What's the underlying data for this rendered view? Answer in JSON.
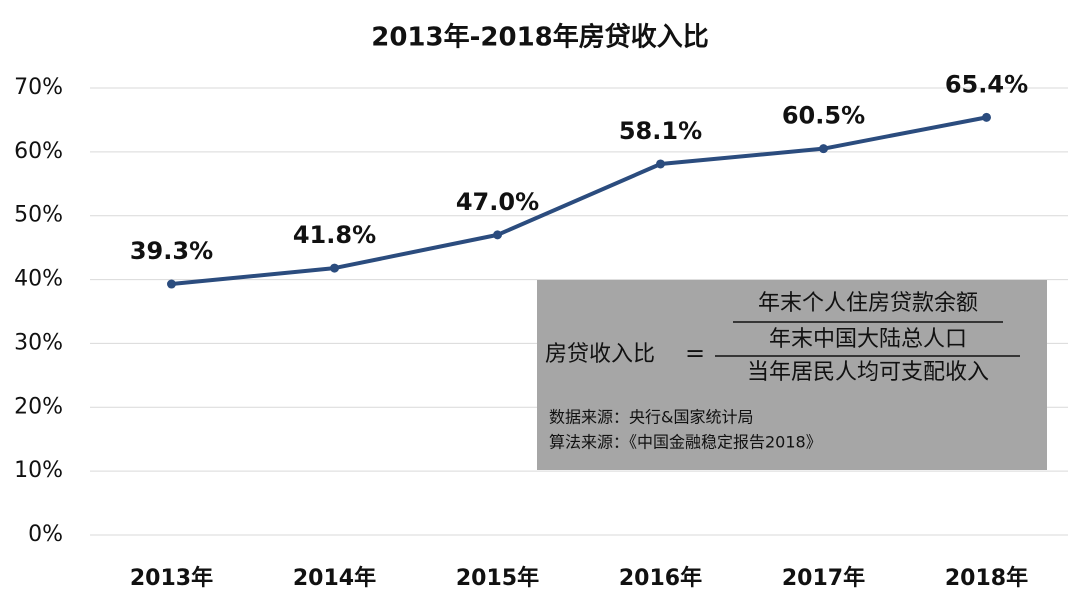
{
  "chart_data": {
    "type": "line",
    "title": "2013年-2018年房贷收入比",
    "categories": [
      "2013年",
      "2014年",
      "2015年",
      "2016年",
      "2017年",
      "2018年"
    ],
    "series": [
      {
        "name": "房贷收入比",
        "color": "#2b4c7e",
        "values": [
          39.3,
          41.8,
          47.0,
          58.1,
          60.5,
          65.4
        ],
        "value_labels": [
          "39.3%",
          "41.8%",
          "47.0%",
          "58.1%",
          "60.5%",
          "65.4%"
        ]
      }
    ],
    "ylim": [
      0,
      70
    ],
    "yticks": [
      {
        "value": 0,
        "label": "0%"
      },
      {
        "value": 10,
        "label": "10%"
      },
      {
        "value": 20,
        "label": "20%"
      },
      {
        "value": 30,
        "label": "30%"
      },
      {
        "value": 40,
        "label": "40%"
      },
      {
        "value": 50,
        "label": "50%"
      },
      {
        "value": 60,
        "label": "60%"
      },
      {
        "value": 70,
        "label": "70%"
      }
    ],
    "grid": true,
    "annotations": {
      "formula": {
        "lhs": "房贷收入比",
        "equals": "=",
        "numerator_top": "年末个人住房贷款余额",
        "numerator_bottom": "年末中国大陆总人口",
        "denominator": "当年居民人均可支配收入"
      },
      "notes": [
        "数据来源：央行&国家统计局",
        "算法来源：《中国金融稳定报告2018》"
      ]
    }
  }
}
